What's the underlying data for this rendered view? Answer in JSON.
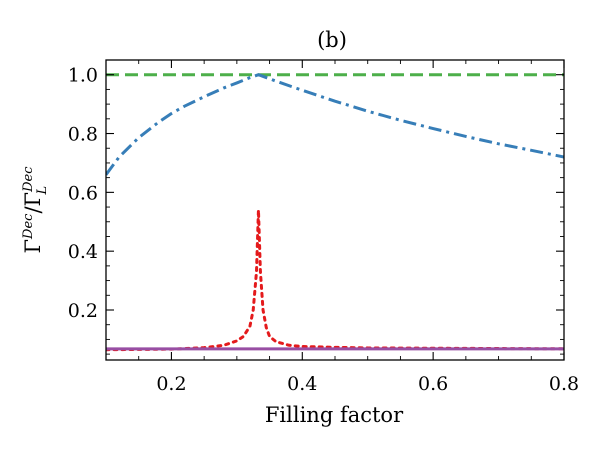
{
  "chart_data": {
    "type": "line",
    "title": "(b)",
    "xlabel": "Filling factor",
    "ylabel_main": "Γ",
    "ylabel_sup_num": "Dec",
    "ylabel_slash": "/",
    "ylabel_den_main": "Γ",
    "ylabel_den_sub": "L",
    "ylabel_den_sup": "Dec",
    "xlim": [
      0.1,
      0.8
    ],
    "ylim": [
      0.03,
      1.05
    ],
    "xticks": [
      0.2,
      0.4,
      0.6,
      0.8
    ],
    "xtick_labels": [
      "0.2",
      "0.4",
      "0.6",
      "0.8"
    ],
    "yticks": [
      0.2,
      0.4,
      0.6,
      0.8,
      1.0
    ],
    "ytick_labels": [
      "0.2",
      "0.4",
      "0.6",
      "0.8",
      "1.0"
    ],
    "series": [
      {
        "name": "green-dashed",
        "color": "#4daf4a",
        "style": "dashed",
        "x": [
          0.1,
          0.8
        ],
        "y": [
          1.0,
          1.0
        ]
      },
      {
        "name": "blue-dashdot",
        "color": "#377eb8",
        "style": "dashdot",
        "x": [
          0.1,
          0.12,
          0.15,
          0.18,
          0.2,
          0.22,
          0.25,
          0.28,
          0.3,
          0.32,
          0.333,
          0.36,
          0.4,
          0.45,
          0.5,
          0.55,
          0.6,
          0.65,
          0.7,
          0.75,
          0.8
        ],
        "y": [
          0.66,
          0.72,
          0.786,
          0.838,
          0.868,
          0.893,
          0.925,
          0.955,
          0.972,
          0.99,
          1.0,
          0.978,
          0.947,
          0.91,
          0.876,
          0.845,
          0.817,
          0.79,
          0.765,
          0.743,
          0.72
        ]
      },
      {
        "name": "red-dotted",
        "color": "#e41a1c",
        "style": "dotted",
        "x": [
          0.1,
          0.15,
          0.2,
          0.25,
          0.28,
          0.3,
          0.31,
          0.32,
          0.325,
          0.33,
          0.333,
          0.336,
          0.34,
          0.345,
          0.35,
          0.36,
          0.38,
          0.4,
          0.45,
          0.5,
          0.6,
          0.7,
          0.8
        ],
        "y": [
          0.065,
          0.066,
          0.067,
          0.072,
          0.08,
          0.095,
          0.11,
          0.145,
          0.2,
          0.33,
          0.54,
          0.33,
          0.2,
          0.14,
          0.11,
          0.092,
          0.08,
          0.076,
          0.073,
          0.071,
          0.07,
          0.069,
          0.068
        ]
      },
      {
        "name": "purple-solid",
        "color": "#984ea3",
        "style": "solid",
        "x": [
          0.1,
          0.8
        ],
        "y": [
          0.068,
          0.068
        ]
      }
    ]
  }
}
